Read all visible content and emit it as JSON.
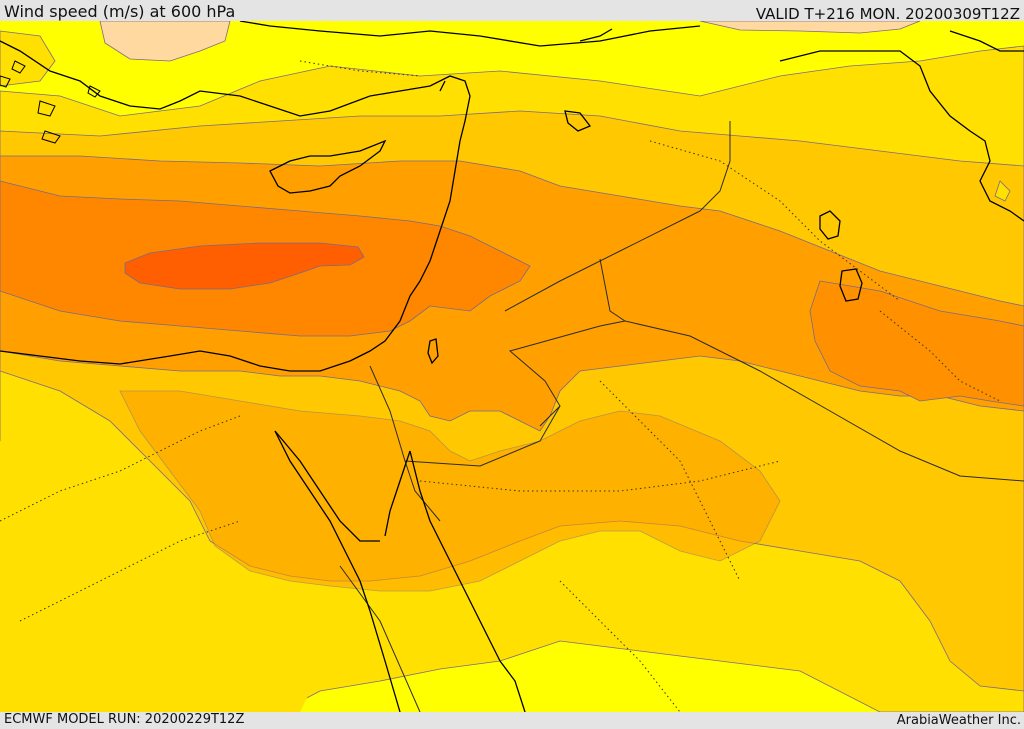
{
  "header": {
    "title": "Wind speed (m/s) at 600 hPa",
    "valid": "VALID T+216 MON. 20200309T12Z"
  },
  "footer": {
    "model_run": "ECMWF MODEL RUN: 20200229T12Z",
    "credit": "ArabiaWeather Inc."
  },
  "colors": {
    "band_lowest": "#ffff00",
    "band_low": "#ffe000",
    "band_mid": "#ffc800",
    "band_midhigh": "#ffa000",
    "band_high": "#ff7f00",
    "band_max": "#ff5f00",
    "calm_patch": "#ffd9a0",
    "contour": "#7a6a8a",
    "coast": "#000000",
    "border": "#2b2b2b"
  }
}
